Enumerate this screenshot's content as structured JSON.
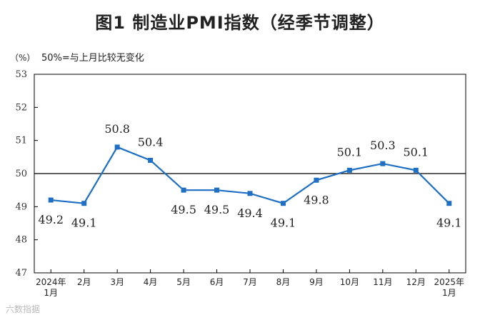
{
  "header": {
    "title": "图1  制造业PMI指数（经季节调整）",
    "unit_label": "（%）",
    "note": "50%=与上月比较无变化"
  },
  "watermark": "六数指据",
  "chart_data": {
    "type": "line",
    "title": "图1  制造业PMI指数（经季节调整）",
    "ylabel": "（%）",
    "categories": [
      "2024年\n1月",
      "2月",
      "3月",
      "4月",
      "5月",
      "6月",
      "7月",
      "8月",
      "9月",
      "10月",
      "11月",
      "12月",
      "2025年\n1月"
    ],
    "series": [
      {
        "values": [
          49.2,
          49.1,
          50.8,
          50.4,
          49.5,
          49.5,
          49.4,
          49.1,
          49.8,
          50.1,
          50.3,
          50.1,
          49.1
        ]
      }
    ],
    "data_labels": [
      "49.2",
      "49.1",
      "50.8",
      "50.4",
      "49.5",
      "49.5",
      "49.4",
      "49.1",
      "49.8",
      "50.1",
      "50.3",
      "50.1",
      "49.1"
    ],
    "label_position": [
      "below",
      "below",
      "above",
      "above",
      "below",
      "below",
      "below",
      "below",
      "below",
      "above",
      "above",
      "above",
      "below"
    ],
    "yticks": [
      47,
      48,
      49,
      50,
      51,
      52,
      53
    ],
    "ylim": [
      47,
      53
    ],
    "reference_line": 50,
    "grid": false,
    "colors": {
      "line": "#1f6fc5",
      "marker": "#1f6fc5",
      "reference": "#000000"
    }
  }
}
